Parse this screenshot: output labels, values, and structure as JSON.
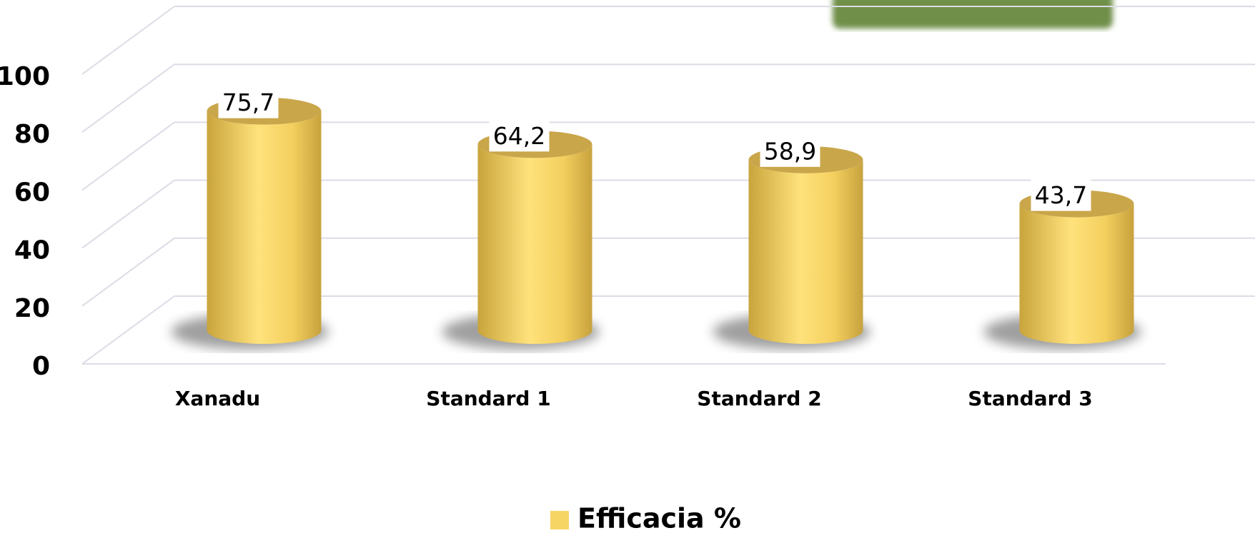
{
  "chart_data": {
    "type": "bar",
    "style": "3d-cylinder",
    "categories": [
      "Xanadu",
      "Standard 1",
      "Standard 2",
      "Standard 3"
    ],
    "series": [
      {
        "name": "Efficacia %",
        "color": "#f7d565",
        "values": [
          75.7,
          64.2,
          58.9,
          43.7
        ],
        "value_labels": [
          "75,7",
          "64,2",
          "58,9",
          "43,7"
        ]
      }
    ],
    "ylim": [
      0,
      100
    ],
    "yticks": [
      0,
      20,
      40,
      60,
      80,
      100
    ],
    "grid": true,
    "legend": "bottom"
  }
}
